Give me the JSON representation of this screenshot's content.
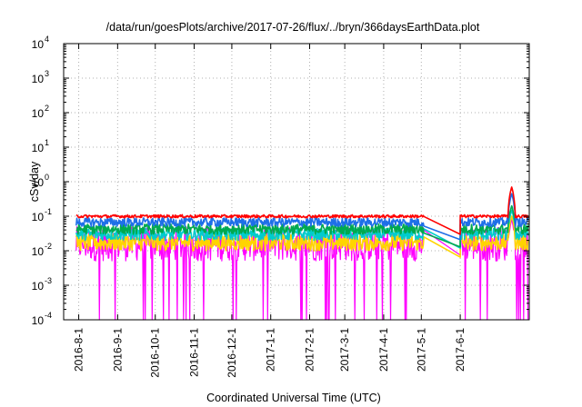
{
  "chart_data": {
    "type": "line",
    "title": "/data/run/goesPlots/archive/2017-07-26/flux/../bryn/366daysEarthData.plot",
    "xlabel": "Coordinated Universal Time (UTC)",
    "ylabel": "cSv/day",
    "y_scale": "log",
    "ylim": [
      0.0001,
      10000
    ],
    "xlim": [
      "2016-07-20",
      "2017-07-26"
    ],
    "grid": true,
    "legend": "none",
    "x_ticks": [
      "2016-8-1",
      "2016-9-1",
      "2016-10-1",
      "2016-11-1",
      "2016-12-1",
      "2017-1-1",
      "2017-2-1",
      "2017-3-1",
      "2017-4-1",
      "2017-5-1",
      "2017-6-1"
    ],
    "y_ticks": [
      {
        "value": 0.0001,
        "mantissa": "10",
        "exp": "-4"
      },
      {
        "value": 0.001,
        "mantissa": "10",
        "exp": "-3"
      },
      {
        "value": 0.01,
        "mantissa": "10",
        "exp": "-2"
      },
      {
        "value": 0.1,
        "mantissa": "10",
        "exp": "-1"
      },
      {
        "value": 1,
        "mantissa": "10",
        "exp": "0"
      },
      {
        "value": 10,
        "mantissa": "10",
        "exp": "1"
      },
      {
        "value": 100,
        "mantissa": "10",
        "exp": "2"
      },
      {
        "value": 1000,
        "mantissa": "10",
        "exp": "3"
      },
      {
        "value": 10000,
        "mantissa": "10",
        "exp": "4"
      }
    ],
    "data_gap": [
      "2017-05-03",
      "2017-06-01"
    ],
    "series": [
      {
        "color": "#ff0000",
        "typical_high": 0.11,
        "typical_low": 0.09,
        "gap_end_value": 0.03,
        "peak": {
          "date": "2017-07-12",
          "value": 0.7
        }
      },
      {
        "color": "#1e6fe8",
        "typical_high": 0.09,
        "typical_low": 0.05,
        "gap_end_value": 0.021,
        "peak": {
          "date": "2017-07-12",
          "value": 0.45
        }
      },
      {
        "color": "#00a94f",
        "typical_high": 0.06,
        "typical_low": 0.03,
        "gap_end_value": 0.013,
        "peak": {
          "date": "2017-07-12",
          "value": 0.2
        }
      },
      {
        "color": "#00cccc",
        "typical_high": 0.045,
        "typical_low": 0.02,
        "gap_end_value": 0.012,
        "peak": {
          "date": "2017-07-12",
          "value": 0.15
        }
      },
      {
        "color": "#ffd400",
        "typical_high": 0.03,
        "typical_low": 0.01,
        "gap_end_value": 0.0065,
        "peak": {
          "date": "2017-07-12",
          "value": 0.1
        }
      },
      {
        "color": "#ff00ff",
        "typical_high": 0.05,
        "typical_low": 0.005,
        "dip_low": 0.0001,
        "gap_end_value": 0.0075,
        "peak": {
          "date": "2017-07-12",
          "value": 0.08
        }
      }
    ]
  }
}
